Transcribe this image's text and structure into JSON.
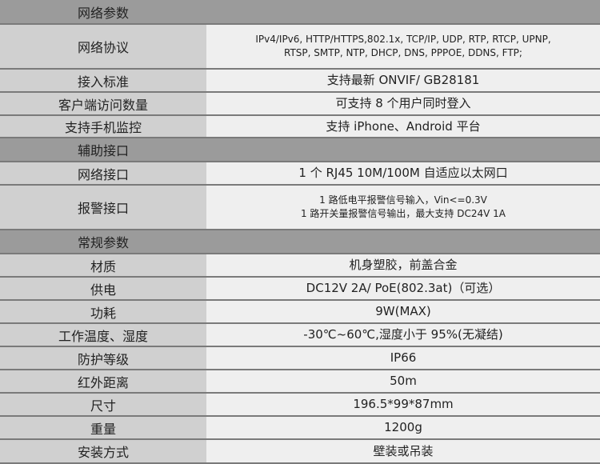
{
  "sections": [
    {
      "title": "网络参数",
      "rows": [
        {
          "label": "网络协议",
          "value": "IPv4/IPv6, HTTP/HTTPS,802.1x, TCP/IP, UDP, RTP, RTCP, UPNP,\nRTSP, SMTP, NTP, DHCP, DNS, PPPOE, DDNS, FTP;",
          "small": true,
          "h": 56
        },
        {
          "label": "接入标准",
          "value": "支持最新 ONVIF/ GB28181",
          "h": 29
        },
        {
          "label": "客户端访问数量",
          "value": "可支持 8 个用户同时登入",
          "h": 29
        },
        {
          "label": "支持手机监控",
          "value": "支持 iPhone、Android 平台",
          "h": 28
        }
      ]
    },
    {
      "title": "辅助接口",
      "rows": [
        {
          "label": "网络接口",
          "value": "1 个 RJ45 10M/100M 自适应以太网口",
          "h": 29
        },
        {
          "label": "报警接口",
          "value": "1 路低电平报警信号输入，Vin<=0.3V\n1 路开关量报警信号输出，最大支持 DC24V 1A",
          "small": true,
          "h": 56
        }
      ]
    },
    {
      "title": "常规参数",
      "rows": [
        {
          "label": "材质",
          "value": "机身塑胶，前盖合金",
          "h": 29
        },
        {
          "label": "供电",
          "value": "DC12V 2A/ PoE(802.3at)（可选）",
          "h": 29
        },
        {
          "label": "功耗",
          "value": "9W(MAX)",
          "h": 29
        },
        {
          "label": "工作温度、湿度",
          "value": "-30℃~60℃,湿度小于 95%(无凝结)",
          "h": 29
        },
        {
          "label": "防护等级",
          "value": "IP66",
          "h": 29
        },
        {
          "label": "红外距离",
          "value": "50m",
          "h": 29
        },
        {
          "label": "尺寸",
          "value": "196.5*99*87mm",
          "h": 29
        },
        {
          "label": "重量",
          "value": "1200g",
          "h": 29
        },
        {
          "label": "安装方式",
          "value": "壁装或吊装",
          "h": 30
        }
      ]
    }
  ]
}
